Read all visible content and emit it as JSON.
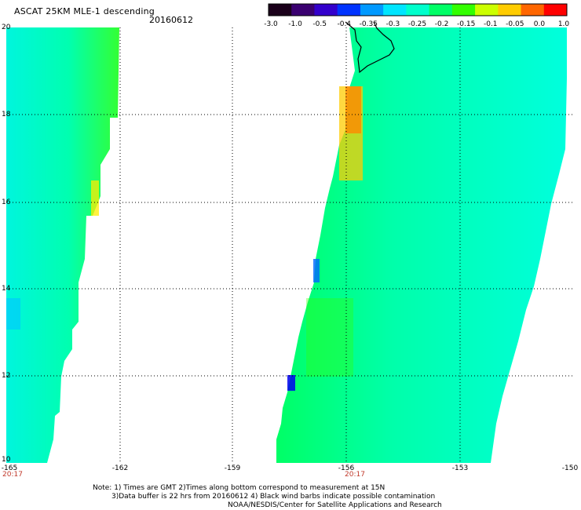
{
  "header": {
    "title": "ASCAT 25KM MLE-1 descending",
    "date": "20160612"
  },
  "colorbar": {
    "ticks": [
      "-3.0",
      "-1.0",
      "-0.5",
      "-0.4",
      "-0.35",
      "-0.3",
      "-0.25",
      "-0.2",
      "-0.15",
      "-0.1",
      "-0.05",
      "0.0",
      "1.0"
    ],
    "colors": [
      "#1a001a",
      "#3a0070",
      "#3300cc",
      "#0033ff",
      "#0099ff",
      "#00e5ff",
      "#00ffcc",
      "#00ff66",
      "#33ff00",
      "#ccff00",
      "#ffcc00",
      "#ff6600",
      "#ff0000"
    ]
  },
  "axes": {
    "y_labels": [
      "20",
      "18",
      "16",
      "14",
      "12",
      "10"
    ],
    "x_labels": [
      "-165",
      "-162",
      "-159",
      "-156",
      "-153",
      "-150"
    ],
    "time_labels": [
      "20:17",
      "20:17"
    ]
  },
  "notes": {
    "line1": "Note: 1) Times are GMT 2)Times along bottom correspond to measurement at 15N",
    "line2": "3)Data buffer is 22 hrs from 20160612 4) Black wind barbs indicate possible contamination",
    "line3": "NOAA/NESDIS/Center for Satellite Applications and Research"
  },
  "colors": {
    "background": "#ffffff",
    "time_label": "#c0392b",
    "grid": "#000000"
  }
}
